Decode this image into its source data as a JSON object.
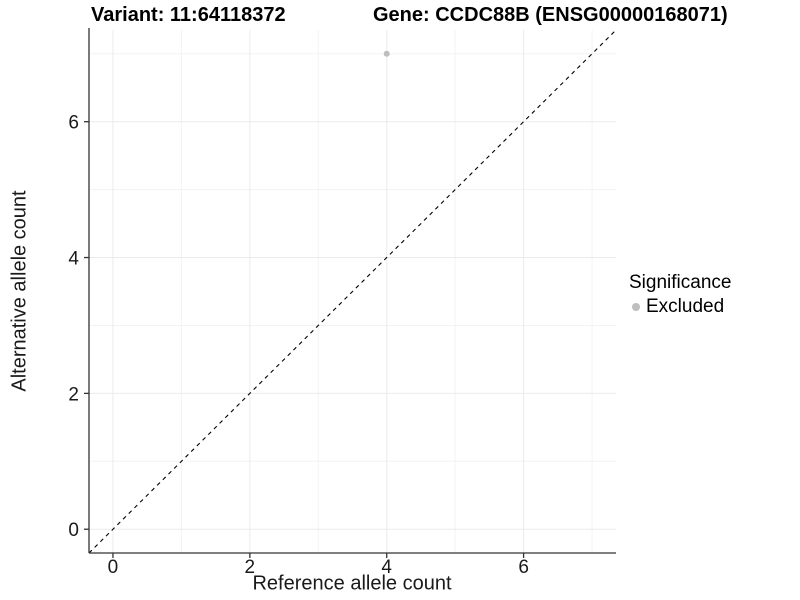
{
  "titles": {
    "left": "Variant: 11:64118372",
    "right": "Gene: CCDC88B (ENSG00000168071)"
  },
  "legend": {
    "title": "Significance",
    "position": "right",
    "items": [
      {
        "label": "Excluded",
        "marker": "circle",
        "color": "#bebebe"
      }
    ]
  },
  "chart_data": {
    "type": "scatter",
    "title": "Variant: 11:64118372    Gene: CCDC88B (ENSG00000168071)",
    "xlabel": "Reference allele count",
    "ylabel": "Alternative allele count",
    "xlim": [
      -0.35,
      7.35
    ],
    "ylim": [
      -0.35,
      7.35
    ],
    "x_ticks": [
      0,
      2,
      4,
      6
    ],
    "y_ticks": [
      0,
      2,
      4,
      6
    ],
    "x_minor_gridlines": [
      1,
      3,
      5,
      7
    ],
    "y_minor_gridlines": [
      1,
      3,
      5,
      7
    ],
    "grid": true,
    "legend_position": "right",
    "series": [
      {
        "name": "Excluded",
        "color": "#bebebe",
        "points": [
          {
            "x": 4,
            "y": 7
          }
        ]
      }
    ],
    "reference_line": {
      "type": "identity",
      "slope": 1,
      "intercept": 0,
      "style": "dashed",
      "color": "#000000"
    }
  },
  "colors": {
    "background": "#ffffff",
    "grid_major": "#ebebeb",
    "grid_minor": "#f3f3f3",
    "axis_line": "#333333",
    "tick_text": "#1a1a1a",
    "point": "#bebebe"
  }
}
